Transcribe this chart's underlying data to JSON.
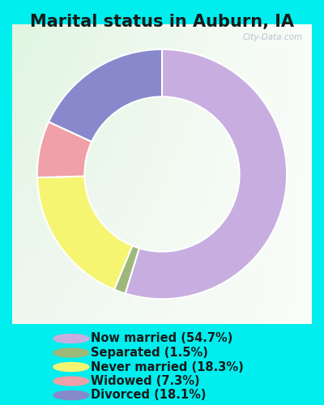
{
  "title": "Marital status in Auburn, IA",
  "slices": [
    54.7,
    1.5,
    18.3,
    7.3,
    18.1
  ],
  "labels": [
    "Now married (54.7%)",
    "Separated (1.5%)",
    "Never married (18.3%)",
    "Widowed (7.3%)",
    "Divorced (18.1%)"
  ],
  "colors": [
    "#c8aee0",
    "#9db87a",
    "#f5f572",
    "#f0a0a8",
    "#8888cc"
  ],
  "background_color": "#00eeee",
  "chart_bg_top_left": "#e8f5ee",
  "chart_bg_center": "#f5faf7",
  "title_fontsize": 15,
  "legend_fontsize": 10.5,
  "watermark": "City-Data.com",
  "start_angle": 90,
  "donut_width": 0.38
}
